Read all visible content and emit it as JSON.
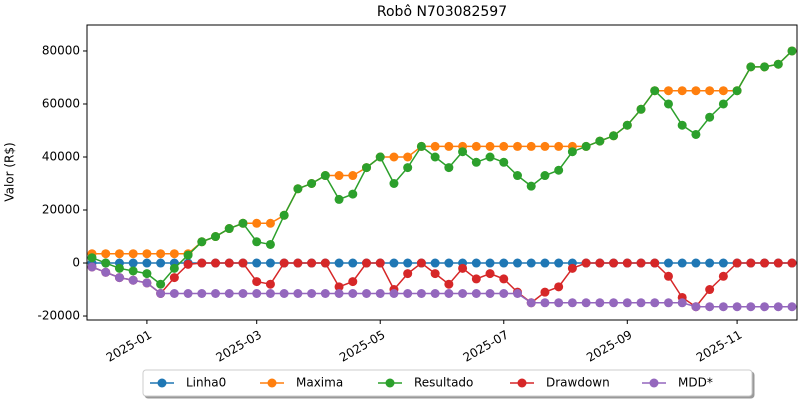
{
  "chart_data": {
    "type": "line",
    "title": "Robô N703082597",
    "y_label": "Valor (R$)",
    "categories": [
      null,
      null,
      null,
      null,
      "2025-01",
      null,
      null,
      null,
      null,
      null,
      null,
      null,
      "2025-03",
      null,
      null,
      null,
      null,
      null,
      null,
      null,
      null,
      "2025-05",
      null,
      null,
      null,
      null,
      null,
      null,
      null,
      null,
      "2025-07",
      null,
      null,
      null,
      null,
      null,
      null,
      null,
      null,
      "2025-09",
      null,
      null,
      null,
      null,
      null,
      null,
      null,
      "2025-11",
      null,
      null,
      null,
      null
    ],
    "series": [
      {
        "name": "Linha0",
        "color": "#1f77b4",
        "values": [
          0,
          0,
          0,
          0,
          0,
          0,
          0,
          0,
          0,
          0,
          0,
          0,
          0,
          0,
          0,
          0,
          0,
          0,
          0,
          0,
          0,
          0,
          0,
          0,
          0,
          0,
          0,
          0,
          0,
          0,
          0,
          0,
          0,
          0,
          0,
          0,
          0,
          0,
          0,
          0,
          0,
          0,
          0,
          0,
          0,
          0,
          0,
          0,
          0,
          0,
          0,
          0
        ]
      },
      {
        "name": "Maxima",
        "color": "#ff7f0e",
        "values": [
          3500,
          3500,
          3500,
          3500,
          3500,
          3500,
          3500,
          3500,
          8000,
          10000,
          13000,
          15000,
          15000,
          15000,
          18000,
          28000,
          30000,
          33000,
          33000,
          33000,
          36000,
          40000,
          40000,
          40000,
          44000,
          44000,
          44000,
          44000,
          44000,
          44000,
          44000,
          44000,
          44000,
          44000,
          44000,
          44000,
          44000,
          46000,
          48000,
          52000,
          58000,
          65000,
          65000,
          65000,
          65000,
          65000,
          65000,
          65000,
          74000,
          74000,
          75000,
          80000
        ]
      },
      {
        "name": "Resultado",
        "color": "#2ca02c",
        "values": [
          2000,
          0,
          -2000,
          -3000,
          -4000,
          -8000,
          -2000,
          3000,
          8000,
          10000,
          13000,
          15000,
          8000,
          7000,
          18000,
          28000,
          30000,
          33000,
          24000,
          26000,
          36000,
          40000,
          30000,
          36000,
          44000,
          40000,
          36000,
          42000,
          38000,
          40000,
          38000,
          33000,
          29000,
          33000,
          35000,
          42000,
          44000,
          46000,
          48000,
          52000,
          58000,
          65000,
          60000,
          52000,
          48500,
          55000,
          60000,
          65000,
          74000,
          74000,
          75000,
          80000
        ]
      },
      {
        "name": "Drawdown",
        "color": "#d62728",
        "values": [
          -1500,
          -3500,
          -5500,
          -6500,
          -7500,
          -11500,
          -5500,
          -500,
          0,
          0,
          0,
          0,
          -7000,
          -8000,
          0,
          0,
          0,
          0,
          -9000,
          -7000,
          0,
          0,
          -10000,
          -4000,
          0,
          -4000,
          -8000,
          -2000,
          -6000,
          -4000,
          -6000,
          -11000,
          -15000,
          -11000,
          -9000,
          -2000,
          0,
          0,
          0,
          0,
          0,
          0,
          -5000,
          -13000,
          -16500,
          -10000,
          -5000,
          0,
          0,
          0,
          0,
          0
        ]
      },
      {
        "name": "MDD*",
        "color": "#9467bd",
        "values": [
          -1500,
          -3500,
          -5500,
          -6500,
          -7500,
          -11500,
          -11500,
          -11500,
          -11500,
          -11500,
          -11500,
          -11500,
          -11500,
          -11500,
          -11500,
          -11500,
          -11500,
          -11500,
          -11500,
          -11500,
          -11500,
          -11500,
          -11500,
          -11500,
          -11500,
          -11500,
          -11500,
          -11500,
          -11500,
          -11500,
          -11500,
          -11500,
          -15000,
          -15000,
          -15000,
          -15000,
          -15000,
          -15000,
          -15000,
          -15000,
          -15000,
          -15000,
          -15000,
          -15000,
          -16500,
          -16500,
          -16500,
          -16500,
          -16500,
          -16500,
          -16500,
          -16500
        ]
      }
    ],
    "ylim": [
      -21500,
      89800
    ],
    "yticks": [
      -20000,
      0,
      20000,
      40000,
      60000,
      80000
    ],
    "legend": "bottom"
  }
}
